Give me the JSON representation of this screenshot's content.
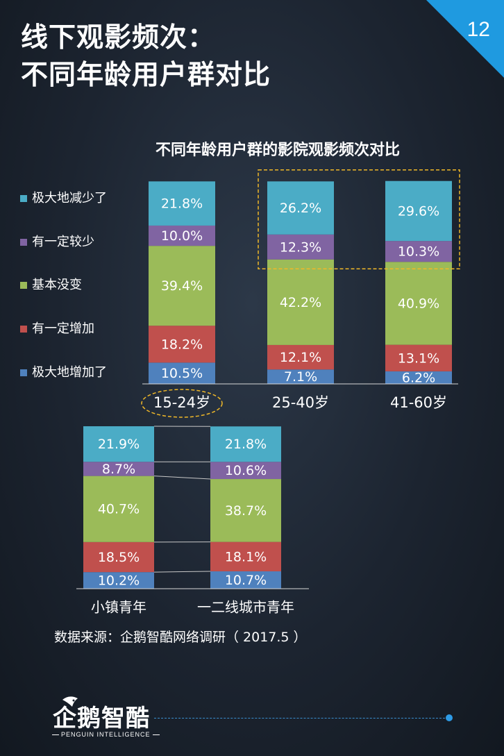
{
  "page": {
    "title_line1": "线下观影频次：",
    "title_line2": "不同年龄用户群对比",
    "page_number": "12",
    "source": "数据来源：企鹅智酷网络调研（  2017.5 ）",
    "logo_text": "企鹅智酷",
    "logo_sub": "PENGUIN INTELLIGENCE"
  },
  "colors": {
    "极大地减少了": "#4bacc6",
    "有一定较少": "#8064a2",
    "基本没变": "#9bbb59",
    "有一定增加": "#c0504d",
    "极大地增加了": "#4f81bd",
    "highlight": "#f0b828",
    "badge": "#1f9ae0"
  },
  "chart_data": [
    {
      "type": "bar",
      "stacked": true,
      "title": "不同年龄用户群的影院观影频次对比",
      "categories": [
        "15-24岁",
        "25-40岁",
        "41-60岁"
      ],
      "legend_position": "left",
      "series": [
        {
          "name": "极大地增加了",
          "values": [
            10.5,
            7.1,
            6.2
          ]
        },
        {
          "name": "有一定增加",
          "values": [
            18.2,
            12.1,
            13.1
          ]
        },
        {
          "name": "基本没变",
          "values": [
            39.4,
            42.2,
            40.9
          ]
        },
        {
          "name": "有一定较少",
          "values": [
            10.0,
            12.3,
            10.3
          ]
        },
        {
          "name": "极大地减少了",
          "values": [
            21.8,
            26.2,
            29.6
          ]
        }
      ],
      "value_labels": [
        [
          "10.5%",
          "18.2%",
          "39.4%",
          "10.0%",
          "21.8%"
        ],
        [
          "7.1%",
          "12.1%",
          "42.2%",
          "12.3%",
          "26.2%"
        ],
        [
          "6.2%",
          "13.1%",
          "40.9%",
          "10.3%",
          "29.6%"
        ]
      ],
      "legend_order": [
        "极大地减少了",
        "有一定较少",
        "基本没变",
        "有一定增加",
        "极大地增加了"
      ]
    },
    {
      "type": "bar",
      "stacked": true,
      "title": "",
      "categories": [
        "小镇青年",
        "一二线城市青年"
      ],
      "series": [
        {
          "name": "极大地增加了",
          "values": [
            10.2,
            10.7
          ]
        },
        {
          "name": "有一定增加",
          "values": [
            18.5,
            18.1
          ]
        },
        {
          "name": "基本没变",
          "values": [
            40.7,
            38.7
          ]
        },
        {
          "name": "有一定较少",
          "values": [
            8.7,
            10.6
          ]
        },
        {
          "name": "极大地减少了",
          "values": [
            21.9,
            21.8
          ]
        }
      ],
      "value_labels": [
        [
          "10.2%",
          "18.5%",
          "40.7%",
          "8.7%",
          "21.9%"
        ],
        [
          "10.7%",
          "18.1%",
          "38.7%",
          "10.6%",
          "21.8%"
        ]
      ]
    }
  ]
}
